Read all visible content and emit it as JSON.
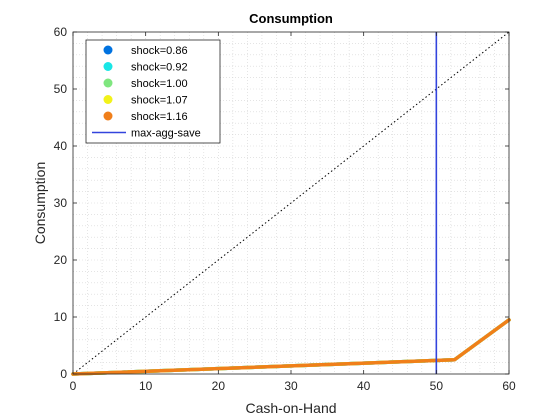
{
  "chart_data": {
    "type": "line",
    "title": "Consumption",
    "xlabel": "Cash-on-Hand",
    "ylabel": "Consumption",
    "xlim": [
      0,
      60
    ],
    "ylim": [
      0,
      60
    ],
    "xticks": [
      0,
      10,
      20,
      30,
      40,
      50,
      60
    ],
    "yticks": [
      0,
      10,
      20,
      30,
      40,
      50,
      60
    ],
    "grid": "minor dotted",
    "legend_position": "top-left",
    "series": [
      {
        "name": "shock=0.86",
        "color": "#0072e0",
        "marker": "dot",
        "x": [
          0,
          52.5,
          60
        ],
        "y": [
          0,
          2.5,
          9.5
        ]
      },
      {
        "name": "shock=0.92",
        "color": "#19e6e6",
        "marker": "dot",
        "x": [
          0,
          52.5,
          60
        ],
        "y": [
          0,
          2.5,
          9.5
        ]
      },
      {
        "name": "shock=1.00",
        "color": "#7fe67f",
        "marker": "dot",
        "x": [
          0,
          52.5,
          60
        ],
        "y": [
          0,
          2.5,
          9.5
        ]
      },
      {
        "name": "shock=1.07",
        "color": "#f2f21a",
        "marker": "dot",
        "x": [
          0,
          52.5,
          60
        ],
        "y": [
          0,
          2.5,
          9.5
        ]
      },
      {
        "name": "shock=1.16",
        "color": "#f07f1a",
        "marker": "dot",
        "x": [
          0,
          52.5,
          60
        ],
        "y": [
          0,
          2.5,
          9.5
        ]
      }
    ],
    "reference_line": {
      "type": "diagonal",
      "x": [
        0,
        60
      ],
      "y": [
        0,
        60
      ],
      "color": "#000000",
      "style": "dotted"
    },
    "vertical_line": {
      "name": "max-agg-save",
      "x": 50,
      "color": "#3344dd"
    }
  }
}
